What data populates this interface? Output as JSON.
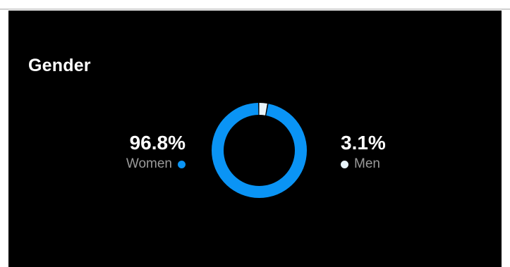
{
  "card": {
    "title": "Gender"
  },
  "colors": {
    "background": "#000000",
    "women": "#0a94f5",
    "men": "#e8f4fb",
    "label": "#9a9a9a",
    "value": "#ffffff"
  },
  "chart_data": {
    "type": "pie",
    "variant": "donut",
    "title": "Gender",
    "series": [
      {
        "name": "Women",
        "value": 96.8,
        "display": "96.8%",
        "color": "#0a94f5"
      },
      {
        "name": "Men",
        "value": 3.1,
        "display": "3.1%",
        "color": "#e8f4fb"
      }
    ],
    "unit": "%"
  }
}
